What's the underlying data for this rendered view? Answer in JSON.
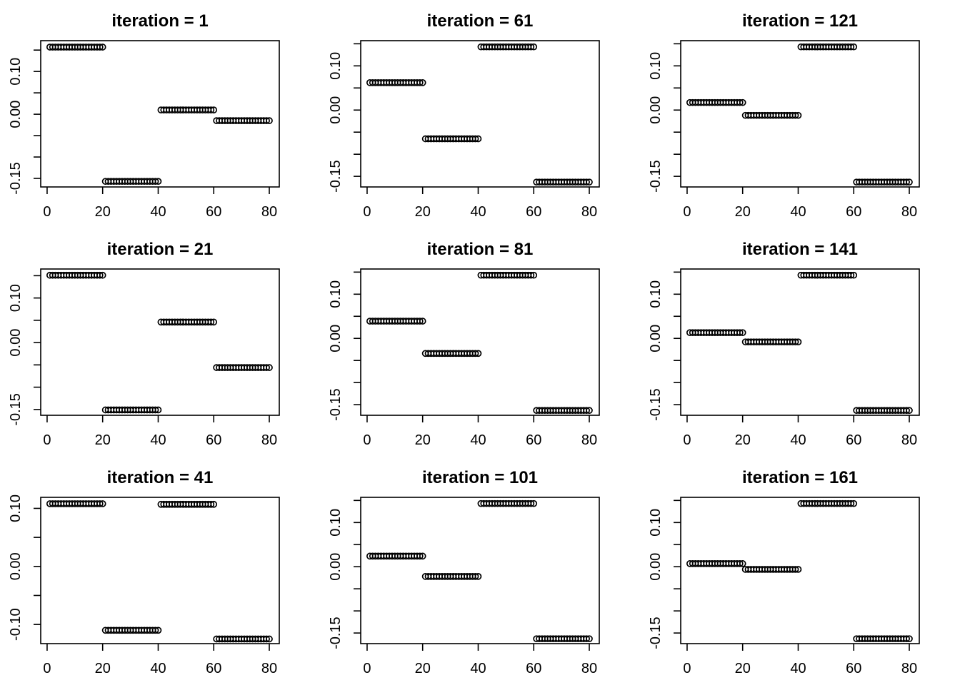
{
  "page": {
    "background_color": "#ffffff",
    "foreground_color": "#000000",
    "description_of_figure": "3x3 grid of R-style scatter plots of 80 observations in 4 blocks of 20, shown at successive iterations"
  },
  "chart_data": [
    {
      "type": "scatter",
      "title": "iteration = 1",
      "marker": "open-circle",
      "grid": false,
      "legend": "none",
      "xlim": [
        -2.3,
        83.6
      ],
      "ylim": [
        -0.17,
        0.172
      ],
      "x_ticks": [
        0,
        20,
        40,
        60,
        80
      ],
      "y_ticks": [
        {
          "v": -0.15,
          "label": "-0.15"
        },
        {
          "v": -0.1,
          "label": ""
        },
        {
          "v": -0.05,
          "label": ""
        },
        {
          "v": 0.0,
          "label": "0.00"
        },
        {
          "v": 0.05,
          "label": ""
        },
        {
          "v": 0.1,
          "label": "0.10"
        },
        {
          "v": 0.15,
          "label": ""
        }
      ],
      "series": [
        {
          "name": "points-1-20",
          "x_from": 1,
          "x_to": 20,
          "y": 0.157
        },
        {
          "name": "points-21-40",
          "x_from": 21,
          "x_to": 40,
          "y": -0.157
        },
        {
          "name": "points-41-60",
          "x_from": 41,
          "x_to": 60,
          "y": 0.01
        },
        {
          "name": "points-61-80",
          "x_from": 61,
          "x_to": 80,
          "y": -0.015
        }
      ]
    },
    {
      "type": "scatter",
      "title": "iteration = 61",
      "marker": "open-circle",
      "grid": false,
      "legend": "none",
      "xlim": [
        -2.3,
        83.6
      ],
      "ylim": [
        -0.174,
        0.157
      ],
      "x_ticks": [
        0,
        20,
        40,
        60,
        80
      ],
      "y_ticks": [
        {
          "v": -0.15,
          "label": "-0.15"
        },
        {
          "v": -0.1,
          "label": ""
        },
        {
          "v": -0.05,
          "label": ""
        },
        {
          "v": 0.0,
          "label": "0.00"
        },
        {
          "v": 0.05,
          "label": ""
        },
        {
          "v": 0.1,
          "label": "0.10"
        },
        {
          "v": 0.15,
          "label": ""
        }
      ],
      "series": [
        {
          "name": "points-1-20",
          "x_from": 1,
          "x_to": 20,
          "y": 0.062
        },
        {
          "name": "points-21-40",
          "x_from": 21,
          "x_to": 40,
          "y": -0.065
        },
        {
          "name": "points-41-60",
          "x_from": 41,
          "x_to": 60,
          "y": 0.143
        },
        {
          "name": "points-61-80",
          "x_from": 61,
          "x_to": 80,
          "y": -0.163
        }
      ]
    },
    {
      "type": "scatter",
      "title": "iteration = 121",
      "marker": "open-circle",
      "grid": false,
      "legend": "none",
      "xlim": [
        -2.3,
        83.6
      ],
      "ylim": [
        -0.174,
        0.157
      ],
      "x_ticks": [
        0,
        20,
        40,
        60,
        80
      ],
      "y_ticks": [
        {
          "v": -0.15,
          "label": "-0.15"
        },
        {
          "v": -0.1,
          "label": ""
        },
        {
          "v": -0.05,
          "label": ""
        },
        {
          "v": 0.0,
          "label": "0.00"
        },
        {
          "v": 0.05,
          "label": ""
        },
        {
          "v": 0.1,
          "label": "0.10"
        },
        {
          "v": 0.15,
          "label": ""
        }
      ],
      "series": [
        {
          "name": "points-1-20",
          "x_from": 1,
          "x_to": 20,
          "y": 0.017
        },
        {
          "name": "points-21-40",
          "x_from": 21,
          "x_to": 40,
          "y": -0.012
        },
        {
          "name": "points-41-60",
          "x_from": 41,
          "x_to": 60,
          "y": 0.143
        },
        {
          "name": "points-61-80",
          "x_from": 61,
          "x_to": 80,
          "y": -0.163
        }
      ]
    },
    {
      "type": "scatter",
      "title": "iteration = 21",
      "marker": "open-circle",
      "grid": false,
      "legend": "none",
      "xlim": [
        -2.3,
        83.6
      ],
      "ylim": [
        -0.163,
        0.165
      ],
      "x_ticks": [
        0,
        20,
        40,
        60,
        80
      ],
      "y_ticks": [
        {
          "v": -0.15,
          "label": "-0.15"
        },
        {
          "v": -0.1,
          "label": ""
        },
        {
          "v": -0.05,
          "label": ""
        },
        {
          "v": 0.0,
          "label": "0.00"
        },
        {
          "v": 0.05,
          "label": ""
        },
        {
          "v": 0.1,
          "label": "0.10"
        },
        {
          "v": 0.15,
          "label": ""
        }
      ],
      "series": [
        {
          "name": "points-1-20",
          "x_from": 1,
          "x_to": 20,
          "y": 0.151
        },
        {
          "name": "points-21-40",
          "x_from": 21,
          "x_to": 40,
          "y": -0.151
        },
        {
          "name": "points-41-60",
          "x_from": 41,
          "x_to": 60,
          "y": 0.046
        },
        {
          "name": "points-61-80",
          "x_from": 61,
          "x_to": 80,
          "y": -0.056
        }
      ]
    },
    {
      "type": "scatter",
      "title": "iteration = 81",
      "marker": "open-circle",
      "grid": false,
      "legend": "none",
      "xlim": [
        -2.3,
        83.6
      ],
      "ylim": [
        -0.174,
        0.157
      ],
      "x_ticks": [
        0,
        20,
        40,
        60,
        80
      ],
      "y_ticks": [
        {
          "v": -0.15,
          "label": "-0.15"
        },
        {
          "v": -0.1,
          "label": ""
        },
        {
          "v": -0.05,
          "label": ""
        },
        {
          "v": 0.0,
          "label": "0.00"
        },
        {
          "v": 0.05,
          "label": ""
        },
        {
          "v": 0.1,
          "label": "0.10"
        },
        {
          "v": 0.15,
          "label": ""
        }
      ],
      "series": [
        {
          "name": "points-1-20",
          "x_from": 1,
          "x_to": 20,
          "y": 0.039
        },
        {
          "name": "points-21-40",
          "x_from": 21,
          "x_to": 40,
          "y": -0.034
        },
        {
          "name": "points-41-60",
          "x_from": 41,
          "x_to": 60,
          "y": 0.143
        },
        {
          "name": "points-61-80",
          "x_from": 61,
          "x_to": 80,
          "y": -0.163
        }
      ]
    },
    {
      "type": "scatter",
      "title": "iteration = 141",
      "marker": "open-circle",
      "grid": false,
      "legend": "none",
      "xlim": [
        -2.3,
        83.6
      ],
      "ylim": [
        -0.174,
        0.157
      ],
      "x_ticks": [
        0,
        20,
        40,
        60,
        80
      ],
      "y_ticks": [
        {
          "v": -0.15,
          "label": "-0.15"
        },
        {
          "v": -0.1,
          "label": ""
        },
        {
          "v": -0.05,
          "label": ""
        },
        {
          "v": 0.0,
          "label": "0.00"
        },
        {
          "v": 0.05,
          "label": ""
        },
        {
          "v": 0.1,
          "label": "0.10"
        },
        {
          "v": 0.15,
          "label": ""
        }
      ],
      "series": [
        {
          "name": "points-1-20",
          "x_from": 1,
          "x_to": 20,
          "y": 0.013
        },
        {
          "name": "points-21-40",
          "x_from": 21,
          "x_to": 40,
          "y": -0.008
        },
        {
          "name": "points-41-60",
          "x_from": 41,
          "x_to": 60,
          "y": 0.143
        },
        {
          "name": "points-61-80",
          "x_from": 61,
          "x_to": 80,
          "y": -0.163
        }
      ]
    },
    {
      "type": "scatter",
      "title": "iteration = 41",
      "marker": "open-circle",
      "grid": false,
      "legend": "none",
      "xlim": [
        -2.3,
        83.6
      ],
      "ylim": [
        -0.133,
        0.119
      ],
      "x_ticks": [
        0,
        20,
        40,
        60,
        80
      ],
      "y_ticks": [
        {
          "v": -0.1,
          "label": "-0.10"
        },
        {
          "v": -0.05,
          "label": ""
        },
        {
          "v": 0.0,
          "label": "0.00"
        },
        {
          "v": 0.05,
          "label": ""
        },
        {
          "v": 0.1,
          "label": "0.10"
        }
      ],
      "series": [
        {
          "name": "points-1-20",
          "x_from": 1,
          "x_to": 20,
          "y": 0.108
        },
        {
          "name": "points-21-40",
          "x_from": 21,
          "x_to": 40,
          "y": -0.11
        },
        {
          "name": "points-41-60",
          "x_from": 41,
          "x_to": 60,
          "y": 0.107
        },
        {
          "name": "points-61-80",
          "x_from": 61,
          "x_to": 80,
          "y": -0.125
        }
      ]
    },
    {
      "type": "scatter",
      "title": "iteration = 101",
      "marker": "open-circle",
      "grid": false,
      "legend": "none",
      "xlim": [
        -2.3,
        83.6
      ],
      "ylim": [
        -0.174,
        0.157
      ],
      "x_ticks": [
        0,
        20,
        40,
        60,
        80
      ],
      "y_ticks": [
        {
          "v": -0.15,
          "label": "-0.15"
        },
        {
          "v": -0.1,
          "label": ""
        },
        {
          "v": -0.05,
          "label": ""
        },
        {
          "v": 0.0,
          "label": "0.00"
        },
        {
          "v": 0.05,
          "label": ""
        },
        {
          "v": 0.1,
          "label": "0.10"
        },
        {
          "v": 0.15,
          "label": ""
        }
      ],
      "series": [
        {
          "name": "points-1-20",
          "x_from": 1,
          "x_to": 20,
          "y": 0.024
        },
        {
          "name": "points-21-40",
          "x_from": 21,
          "x_to": 40,
          "y": -0.022
        },
        {
          "name": "points-41-60",
          "x_from": 41,
          "x_to": 60,
          "y": 0.143
        },
        {
          "name": "points-61-80",
          "x_from": 61,
          "x_to": 80,
          "y": -0.163
        }
      ]
    },
    {
      "type": "scatter",
      "title": "iteration = 161",
      "marker": "open-circle",
      "grid": false,
      "legend": "none",
      "xlim": [
        -2.3,
        83.6
      ],
      "ylim": [
        -0.174,
        0.157
      ],
      "x_ticks": [
        0,
        20,
        40,
        60,
        80
      ],
      "y_ticks": [
        {
          "v": -0.15,
          "label": "-0.15"
        },
        {
          "v": -0.1,
          "label": ""
        },
        {
          "v": -0.05,
          "label": ""
        },
        {
          "v": 0.0,
          "label": "0.00"
        },
        {
          "v": 0.05,
          "label": ""
        },
        {
          "v": 0.1,
          "label": "0.10"
        },
        {
          "v": 0.15,
          "label": ""
        }
      ],
      "series": [
        {
          "name": "points-1-20",
          "x_from": 1,
          "x_to": 20,
          "y": 0.007
        },
        {
          "name": "points-21-40",
          "x_from": 21,
          "x_to": 40,
          "y": -0.006
        },
        {
          "name": "points-41-60",
          "x_from": 41,
          "x_to": 60,
          "y": 0.143
        },
        {
          "name": "points-61-80",
          "x_from": 61,
          "x_to": 80,
          "y": -0.163
        }
      ]
    }
  ]
}
